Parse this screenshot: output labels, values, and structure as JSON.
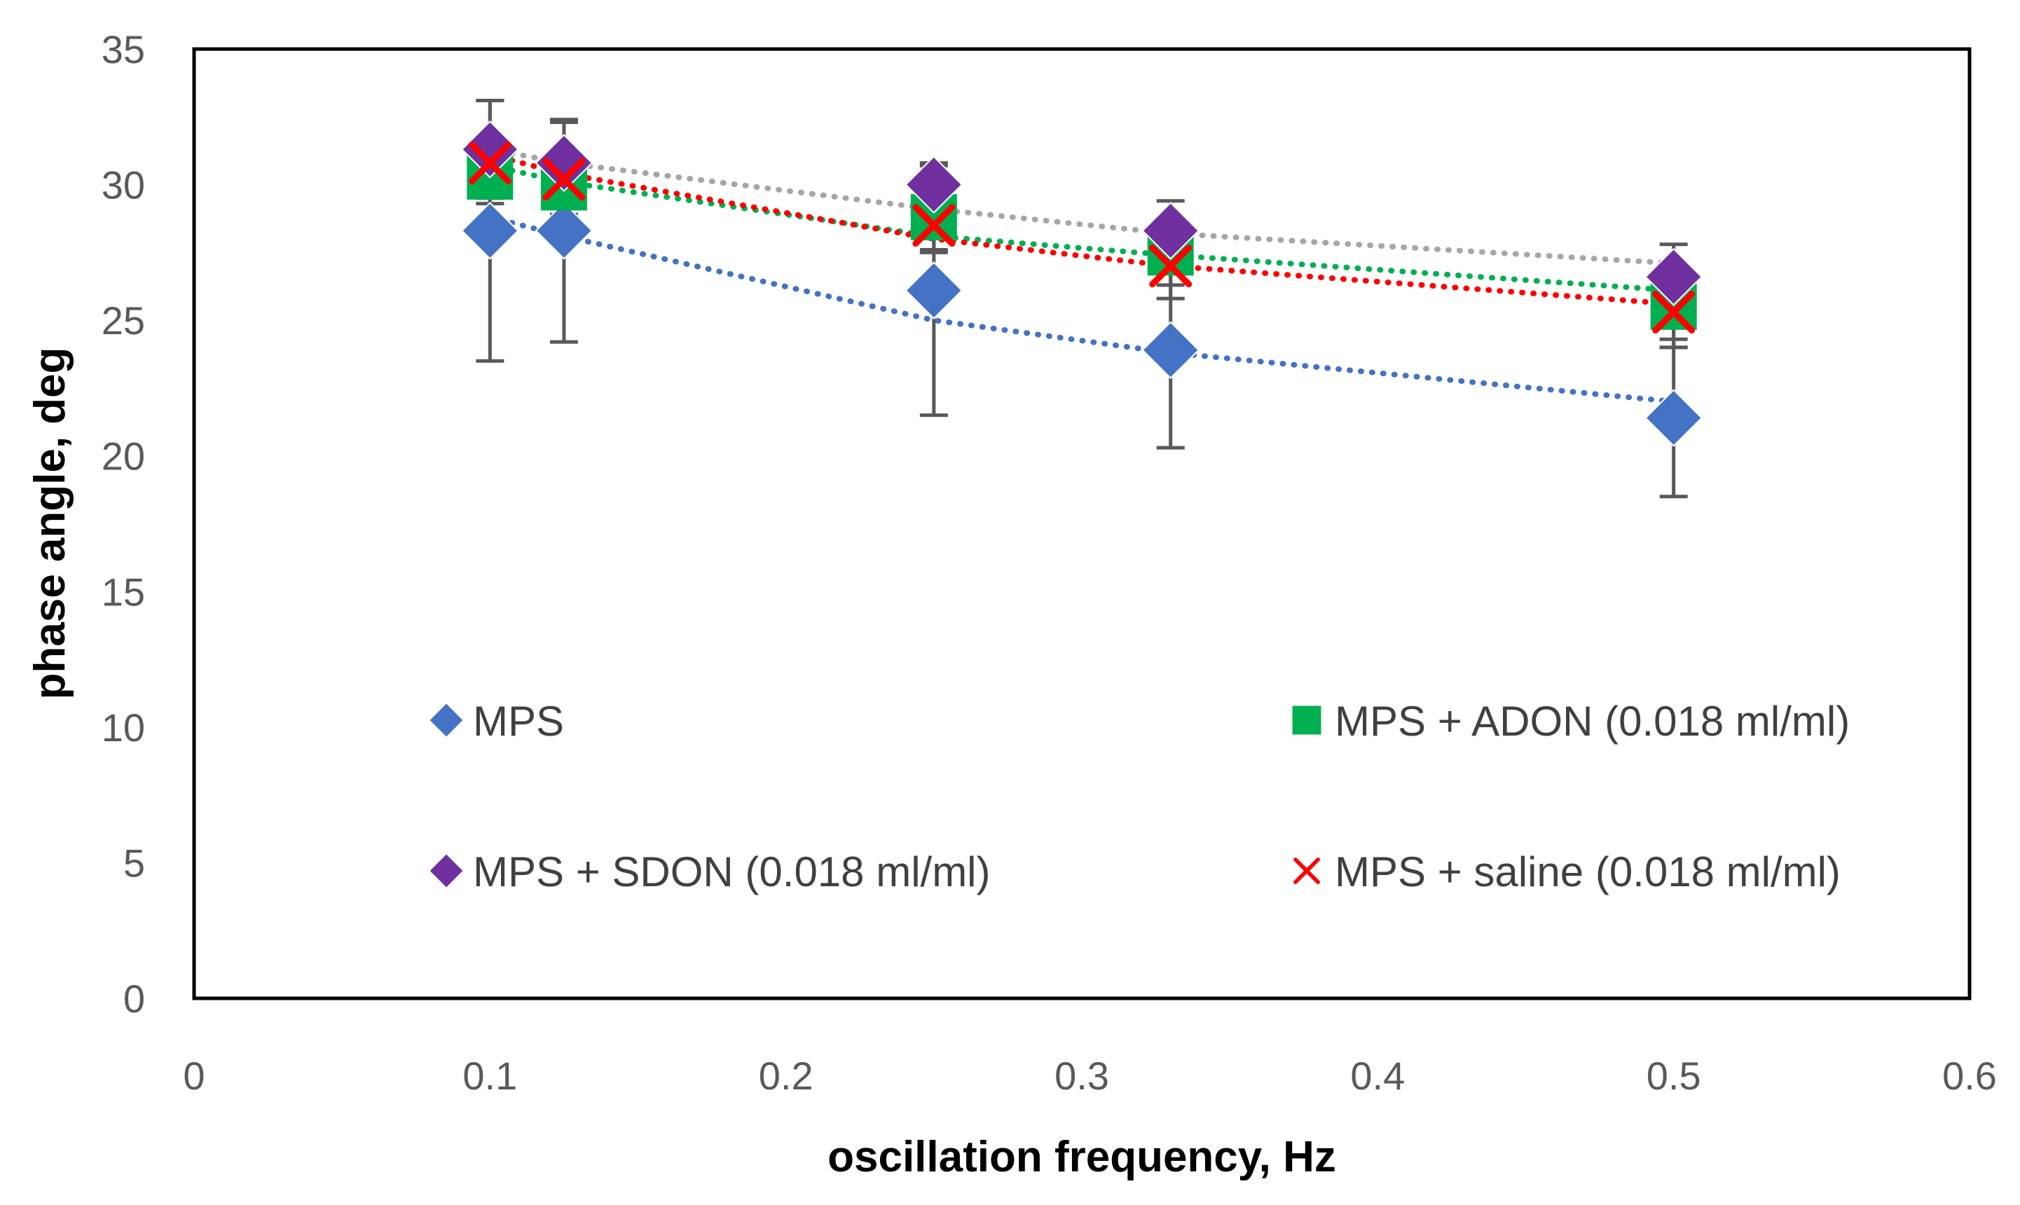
{
  "chart_data": {
    "type": "scatter",
    "title": "",
    "xlabel": "oscillation frequency, Hz",
    "ylabel": "phase angle, deg",
    "xlim": [
      0,
      0.6
    ],
    "ylim": [
      0,
      35
    ],
    "xticks": [
      0,
      0.1,
      0.2,
      0.3,
      0.4,
      0.5,
      0.6
    ],
    "xtick_labels": [
      "0",
      "0.1",
      "0.2",
      "0.3",
      "0.4",
      "0.5",
      "0.6"
    ],
    "yticks": [
      0,
      5,
      10,
      15,
      20,
      25,
      30,
      35
    ],
    "ytick_labels": [
      "0",
      "5",
      "10",
      "15",
      "20",
      "25",
      "30",
      "35"
    ],
    "grid": false,
    "legend_position": "inside-bottom",
    "x": [
      0.1,
      0.125,
      0.25,
      0.33,
      0.5
    ],
    "series": [
      {
        "name": "MPS",
        "marker": "diamond",
        "color": "#4472C4",
        "trendline_color": "#4472C4",
        "values": [
          28.3,
          28.3,
          26.1,
          23.9,
          21.4
        ],
        "error": [
          4.8,
          4.1,
          4.6,
          3.6,
          2.9
        ],
        "trendline": [
          28.8,
          28.1,
          25.0,
          23.8,
          22.0
        ]
      },
      {
        "name": "MPS + ADON (0.018 ml/ml)",
        "marker": "square",
        "color": "#00B050",
        "trendline_color": "#00B050",
        "values": [
          30.3,
          29.9,
          28.8,
          27.5,
          25.5
        ],
        "error": [
          1.0,
          1.0,
          1.2,
          1.2,
          1.5
        ],
        "trendline": [
          30.7,
          30.1,
          28.1,
          27.4,
          26.1
        ]
      },
      {
        "name": "MPS + SDON (0.018 ml/ml)",
        "marker": "diamond",
        "color": "#7030A0",
        "trendline_color": "#A6A6A6",
        "values": [
          31.3,
          30.8,
          30.0,
          28.3,
          26.6
        ],
        "error": [
          1.8,
          1.5,
          0.8,
          1.1,
          1.2
        ],
        "trendline": [
          31.3,
          30.8,
          29.1,
          28.2,
          27.1
        ]
      },
      {
        "name": "MPS + saline (0.018 ml/ml)",
        "marker": "x",
        "color": "#FF0000",
        "trendline_color": "#FF0000",
        "values": [
          30.8,
          30.2,
          28.5,
          27.0,
          25.3
        ],
        "error": [
          1.0,
          1.0,
          1.0,
          1.2,
          1.3
        ],
        "trendline": [
          31.1,
          30.4,
          28.0,
          27.0,
          25.6
        ]
      }
    ]
  }
}
